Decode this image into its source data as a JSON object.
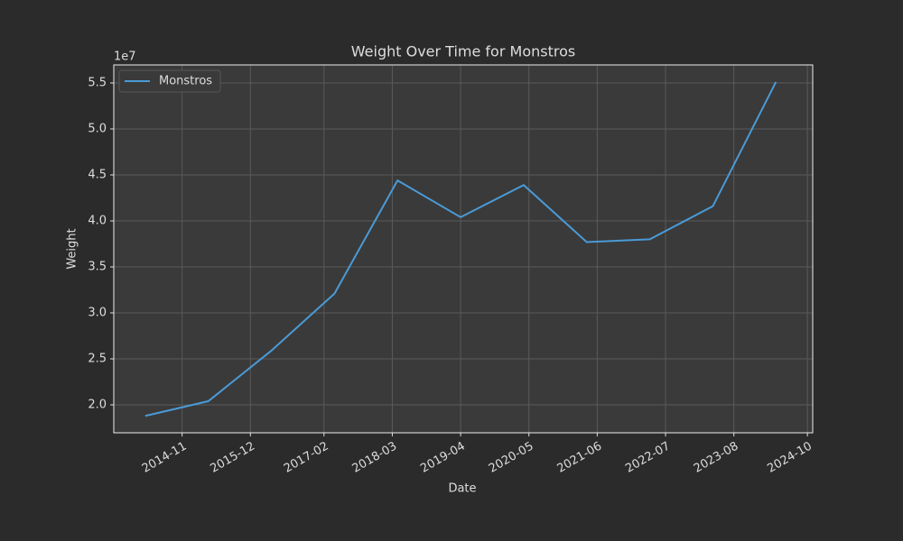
{
  "chart_data": {
    "type": "line",
    "title": "Weight Over Time for Monstros",
    "x_label": "Date",
    "y_label": "Weight",
    "y_offset_label": "1e7",
    "x": [
      "2014-04",
      "2015-04",
      "2016-04",
      "2017-04",
      "2018-04",
      "2019-04",
      "2020-04",
      "2021-04",
      "2022-04",
      "2023-04",
      "2024-04"
    ],
    "series": [
      {
        "name": "Monstros",
        "color": "#4a9ad6",
        "values": [
          18800000,
          20400000,
          25900000,
          32100000,
          44400000,
          40400000,
          43900000,
          37700000,
          38000000,
          41600000,
          55100000
        ]
      }
    ],
    "xlim": [
      "2013-10",
      "2024-11"
    ],
    "xticks": [
      "2014-11",
      "2015-12",
      "2017-02",
      "2018-03",
      "2019-04",
      "2020-05",
      "2021-06",
      "2022-07",
      "2023-08",
      "2024-10"
    ],
    "ylim": [
      16960000,
      56960000
    ],
    "yticks": [
      {
        "value": 20000000,
        "label": "2.0"
      },
      {
        "value": 25000000,
        "label": "2.5"
      },
      {
        "value": 30000000,
        "label": "3.0"
      },
      {
        "value": 35000000,
        "label": "3.5"
      },
      {
        "value": 40000000,
        "label": "4.0"
      },
      {
        "value": 45000000,
        "label": "4.5"
      },
      {
        "value": 50000000,
        "label": "5.0"
      },
      {
        "value": 55000000,
        "label": "5.5"
      }
    ],
    "grid": true,
    "legend": "upper left"
  }
}
